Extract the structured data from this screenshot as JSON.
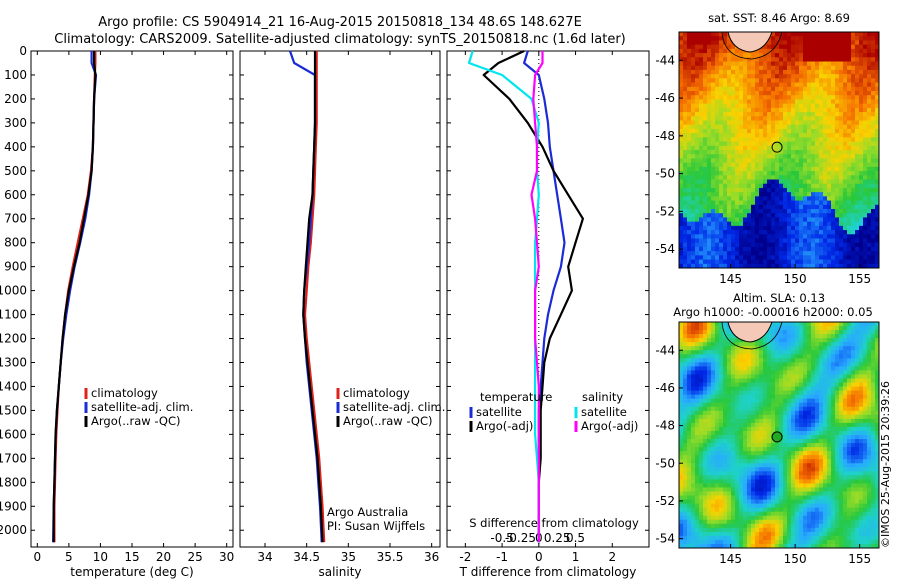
{
  "header": {
    "line1": "Argo profile: CS 5904914_21 16-Aug-2015 20150818_134 48.6S 148.627E",
    "line2": "Climatology: CARS2009. Satellite-adjusted climatology: synTS_20150818.nc (1.6d later)"
  },
  "colors": {
    "climatology": "#e0201b",
    "satellite": "#1b2bd6",
    "argo": "#000000",
    "satellite_salinity": "#00e5ee",
    "argo_salinity": "#ff00ff"
  },
  "chart_data": [
    {
      "id": "temperature",
      "type": "line",
      "xlabel": "temperature (deg C)",
      "ylabel": "",
      "xlim": [
        -1,
        31
      ],
      "ylim": [
        2070,
        0
      ],
      "xticks": [
        0,
        5,
        10,
        15,
        20,
        25,
        30
      ],
      "yticks": [
        0,
        100,
        200,
        300,
        400,
        500,
        600,
        700,
        800,
        900,
        1000,
        1100,
        1200,
        1300,
        1400,
        1500,
        1600,
        1700,
        1800,
        1900,
        2000
      ],
      "legend": [
        "climatology",
        "satellite-adj. clim.",
        "Argo(..raw -QC)"
      ],
      "legend_position": "lower-center",
      "series": [
        {
          "name": "climatology",
          "x": [
            9.2,
            9.2,
            9.1,
            9.0,
            8.9,
            8.8,
            8.5,
            8.0,
            7.2,
            6.4,
            5.6,
            4.9,
            4.4,
            4.0,
            3.7,
            3.4,
            3.2,
            3.0,
            2.9,
            2.8,
            2.7,
            2.7
          ],
          "y": [
            0,
            50,
            100,
            200,
            300,
            400,
            500,
            600,
            700,
            800,
            900,
            1000,
            1100,
            1200,
            1300,
            1400,
            1500,
            1600,
            1700,
            1800,
            1900,
            2050
          ]
        },
        {
          "name": "satellite-adj. clim.",
          "x": [
            8.6,
            8.6,
            9.3,
            9.0,
            8.9,
            8.8,
            8.6,
            8.2,
            7.6,
            6.8,
            5.9,
            5.2,
            4.6,
            4.1,
            3.7,
            3.4,
            3.1,
            2.9,
            2.8,
            2.7,
            2.6,
            2.5
          ],
          "y": [
            0,
            50,
            100,
            200,
            300,
            400,
            500,
            600,
            700,
            800,
            900,
            1000,
            1100,
            1200,
            1300,
            1400,
            1500,
            1600,
            1700,
            1800,
            1900,
            2050
          ]
        },
        {
          "name": "Argo(..raw -QC)",
          "x": [
            9.0,
            9.0,
            9.2,
            9.0,
            8.9,
            8.8,
            8.6,
            8.1,
            7.4,
            6.7,
            5.8,
            5.0,
            4.4,
            4.0,
            3.7,
            3.4,
            3.1,
            2.9,
            2.8,
            2.7,
            2.6,
            2.6
          ],
          "y": [
            0,
            50,
            100,
            200,
            300,
            400,
            500,
            600,
            700,
            800,
            900,
            1000,
            1100,
            1200,
            1300,
            1400,
            1500,
            1600,
            1700,
            1800,
            1900,
            2050
          ]
        }
      ]
    },
    {
      "id": "salinity",
      "type": "line",
      "xlabel": "salinity",
      "ylabel": "",
      "xlim": [
        33.7,
        36.1
      ],
      "ylim": [
        2070,
        0
      ],
      "xticks": [
        34,
        34.5,
        35,
        35.5,
        36
      ],
      "legend": [
        "climatology",
        "satellite-adj. clim.",
        "Argo(..raw -QC)"
      ],
      "legend_position": "lower-right",
      "annotation": [
        "Argo Australia",
        "PI: Susan Wijffels"
      ],
      "series": [
        {
          "name": "climatology",
          "x": [
            34.62,
            34.62,
            34.62,
            34.62,
            34.62,
            34.61,
            34.6,
            34.59,
            34.57,
            34.55,
            34.52,
            34.5,
            34.48,
            34.5,
            34.53,
            34.56,
            34.59,
            34.62,
            34.65,
            34.67,
            34.69,
            34.71
          ],
          "y": [
            0,
            50,
            100,
            200,
            300,
            400,
            500,
            600,
            700,
            800,
            900,
            1000,
            1100,
            1200,
            1300,
            1400,
            1500,
            1600,
            1700,
            1800,
            1900,
            2050
          ]
        },
        {
          "name": "satellite-adj. clim.",
          "x": [
            34.3,
            34.35,
            34.6,
            34.6,
            34.6,
            34.59,
            34.58,
            34.57,
            34.55,
            34.53,
            34.5,
            34.47,
            34.46,
            34.48,
            34.5,
            34.53,
            34.56,
            34.59,
            34.62,
            34.64,
            34.66,
            34.68
          ],
          "y": [
            0,
            50,
            100,
            200,
            300,
            400,
            500,
            600,
            700,
            800,
            900,
            1000,
            1100,
            1200,
            1300,
            1400,
            1500,
            1600,
            1700,
            1800,
            1900,
            2050
          ]
        },
        {
          "name": "Argo(..raw -QC)",
          "x": [
            34.6,
            34.6,
            34.6,
            34.6,
            34.6,
            34.59,
            34.58,
            34.57,
            34.53,
            34.51,
            34.49,
            34.47,
            34.46,
            34.48,
            34.51,
            34.54,
            34.57,
            34.6,
            34.63,
            34.65,
            34.67,
            34.69
          ],
          "y": [
            0,
            50,
            100,
            200,
            300,
            400,
            500,
            600,
            700,
            800,
            900,
            1000,
            1100,
            1200,
            1300,
            1400,
            1500,
            1600,
            1700,
            1800,
            1900,
            2050
          ]
        }
      ]
    },
    {
      "id": "difference",
      "type": "line",
      "xlabel": "T difference from climatology",
      "xlabel_top": "S difference from climatology",
      "ylabel": "",
      "xlim": [
        -2.5,
        3.0
      ],
      "ylim": [
        2070,
        0
      ],
      "xticks": [
        -2,
        -1,
        0,
        1,
        2
      ],
      "top_ticks": [
        "-0.5",
        "-0.25",
        "0",
        "0.25",
        "0.5"
      ],
      "legend_headers": [
        "temperature",
        "salinity"
      ],
      "legend": [
        "satellite",
        "Argo(-adj)",
        "satellite",
        "Argo(-adj)"
      ],
      "legend_position": "lower-center",
      "series": [
        {
          "name": "satellite",
          "x": [
            -0.3,
            -0.4,
            0.0,
            0.15,
            0.25,
            0.3,
            0.4,
            0.5,
            0.6,
            0.7,
            0.6,
            0.4,
            0.25,
            0.15,
            0.1,
            0.05,
            0.0,
            0.0,
            0.0,
            0.0,
            0.0,
            0.0
          ],
          "y": [
            0,
            50,
            100,
            200,
            300,
            400,
            500,
            600,
            700,
            800,
            900,
            1000,
            1100,
            1200,
            1300,
            1400,
            1500,
            1600,
            1700,
            1800,
            1900,
            2050
          ]
        },
        {
          "name": "Argo(-adj)",
          "x": [
            -0.4,
            -1.1,
            -1.5,
            -0.8,
            -0.3,
            0.1,
            0.4,
            0.8,
            1.2,
            1.0,
            0.8,
            0.9,
            0.6,
            0.3,
            0.15,
            0.1,
            0.05,
            0.05,
            0.05,
            0.0,
            0.0,
            0.0
          ],
          "y": [
            0,
            50,
            100,
            200,
            300,
            400,
            500,
            600,
            700,
            800,
            900,
            1000,
            1100,
            1200,
            1300,
            1400,
            1500,
            1600,
            1700,
            1800,
            1900,
            2050
          ]
        },
        {
          "name": "satellite",
          "x": [
            -1.8,
            -1.9,
            -1.0,
            -0.2,
            0.0,
            -0.05,
            -0.05,
            0.0,
            -0.05,
            -0.1,
            -0.1,
            -0.1,
            -0.1,
            -0.1,
            -0.1,
            -0.1,
            -0.1,
            -0.1,
            -0.05,
            0.0,
            0.0,
            0.0
          ],
          "y": [
            0,
            50,
            100,
            200,
            300,
            400,
            500,
            600,
            700,
            800,
            900,
            1000,
            1100,
            1200,
            1300,
            1400,
            1500,
            1600,
            1700,
            1800,
            1900,
            2050
          ]
        },
        {
          "name": "Argo(-adj)",
          "x": [
            0.1,
            0.1,
            -0.1,
            -0.15,
            -0.1,
            -0.05,
            -0.05,
            -0.2,
            -0.1,
            -0.05,
            0.0,
            -0.1,
            -0.1,
            -0.1,
            -0.05,
            0.0,
            0.0,
            0.0,
            0.0,
            0.0,
            0.0,
            0.0
          ],
          "y": [
            0,
            50,
            100,
            200,
            300,
            400,
            500,
            600,
            700,
            800,
            900,
            1000,
            1100,
            1200,
            1300,
            1400,
            1500,
            1600,
            1700,
            1800,
            1900,
            2050
          ]
        }
      ]
    },
    {
      "id": "sst-map",
      "type": "heatmap",
      "title": "sat. SST: 8.46 Argo: 8.69",
      "xlim": [
        141,
        156.5
      ],
      "ylim": [
        -55,
        -42.5
      ],
      "xticks": [
        145,
        150,
        155
      ],
      "yticks": [
        -44,
        -46,
        -48,
        -50,
        -52,
        -54
      ],
      "argo_position": [
        148.6,
        -48.6
      ]
    },
    {
      "id": "sla-map",
      "type": "heatmap",
      "title": "Altim. SLA: 0.13",
      "subtitle": "Argo h1000: -0.00016 h2000: 0.05",
      "xlim": [
        141,
        156.5
      ],
      "ylim": [
        -54.5,
        -42.5
      ],
      "xticks": [
        145,
        150,
        155
      ],
      "yticks": [
        -44,
        -46,
        -48,
        -50,
        -52,
        -54
      ],
      "argo_position": [
        148.6,
        -48.6
      ]
    }
  ],
  "credit": "©IMOS 25-Aug-2015 20:39:26"
}
